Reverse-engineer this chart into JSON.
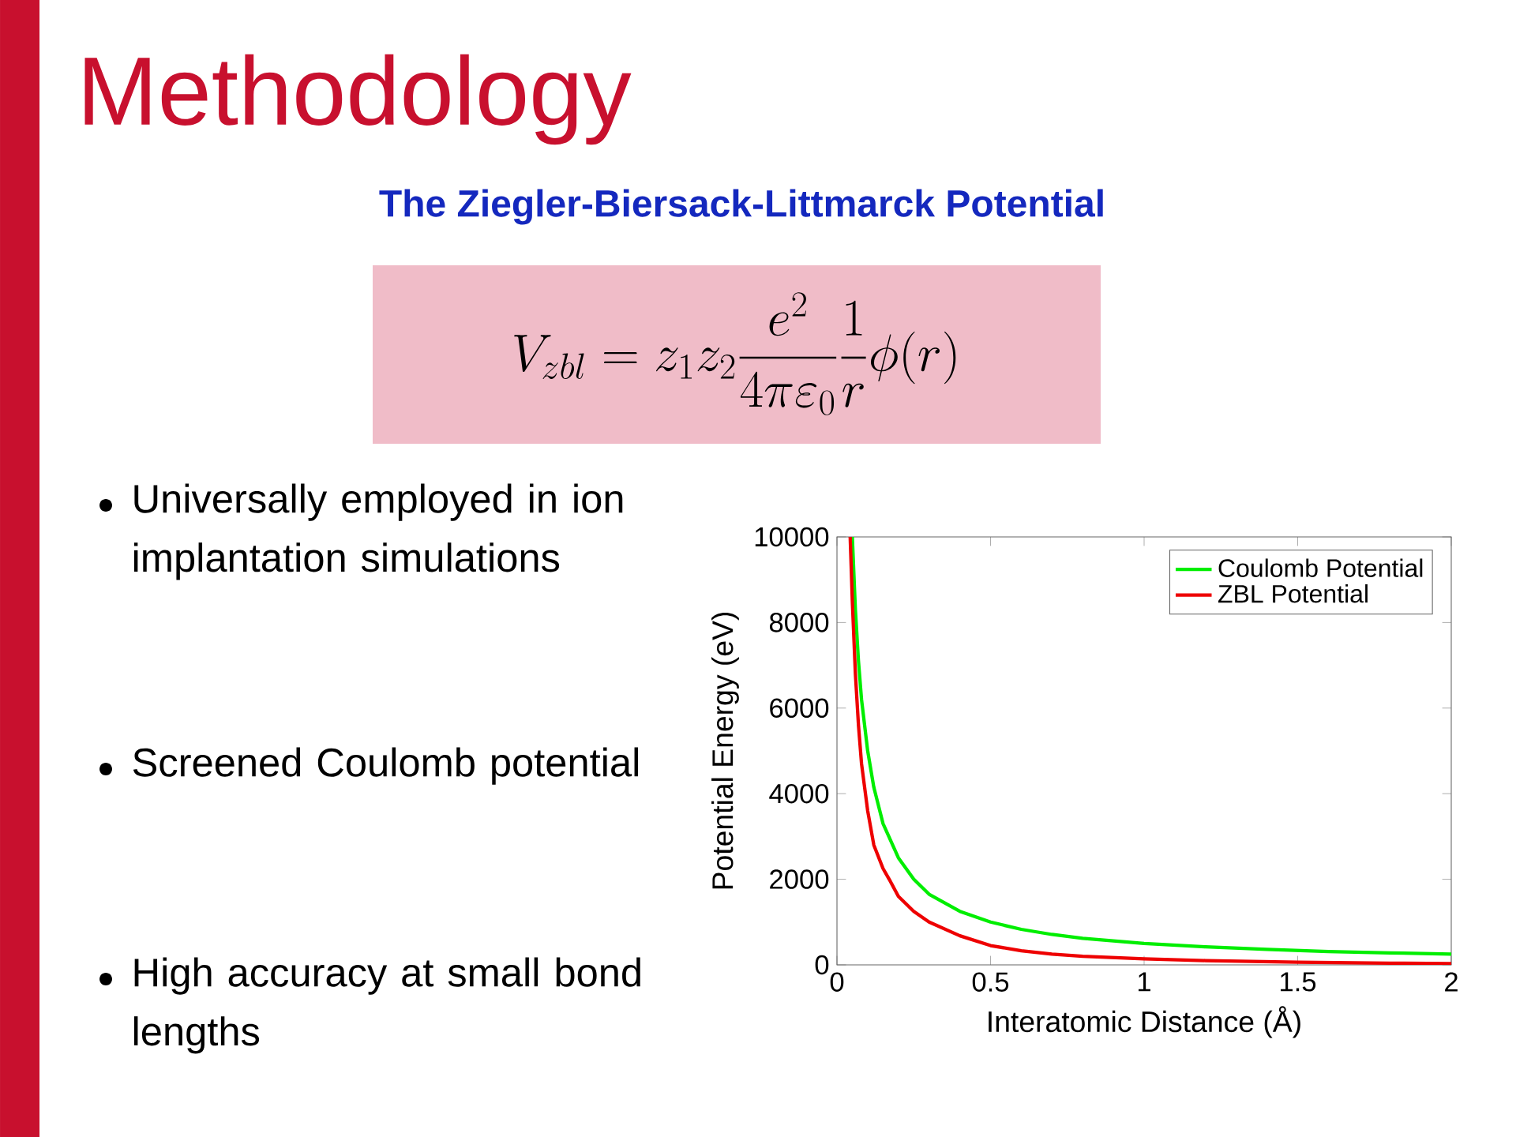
{
  "chart_data": {
    "type": "line",
    "title": "Methodology",
    "subtitle": "The Ziegler-Biersack-Littmarck Potential",
    "xlabel": "Interatomic Distance (Å)",
    "ylabel": "Potential Energy (eV)",
    "annotations": [
      "V_{zbl} = z_1 z_2 \\frac{e^2}{4\\pi\\varepsilon_0}\\frac{1}{r}\\phi(r)",
      "Universally employed in ion implantation simulations",
      "Screened Coulomb potential",
      "High accuracy at small bond lengths"
    ],
    "xlim": [
      0,
      2
    ],
    "ylim": [
      0,
      10000
    ],
    "xticks": [
      0,
      0.5,
      1,
      1.5,
      2
    ],
    "yticks": [
      0,
      2000,
      4000,
      6000,
      8000,
      10000
    ],
    "legend": "top right",
    "grid": false,
    "series": [
      {
        "name": "Coulomb Potential",
        "color": "#00ee00",
        "x": [
          0.05,
          0.06,
          0.07,
          0.08,
          0.1,
          0.12,
          0.15,
          0.2,
          0.25,
          0.3,
          0.4,
          0.5,
          0.6,
          0.7,
          0.8,
          1.0,
          1.2,
          1.4,
          1.6,
          1.8,
          2.0
        ],
        "values": [
          10000,
          8300,
          7100,
          6200,
          5000,
          4150,
          3300,
          2500,
          2000,
          1650,
          1250,
          1000,
          830,
          710,
          620,
          500,
          420,
          360,
          310,
          280,
          250
        ]
      },
      {
        "name": "ZBL Potential",
        "color": "#ee0000",
        "x": [
          0.043,
          0.05,
          0.06,
          0.07,
          0.08,
          0.1,
          0.12,
          0.15,
          0.17,
          0.2,
          0.25,
          0.3,
          0.4,
          0.5,
          0.6,
          0.7,
          0.8,
          1.0,
          1.2,
          1.5,
          1.8,
          2.0
        ],
        "values": [
          10000,
          8500,
          6800,
          5600,
          4700,
          3600,
          2800,
          2250,
          2000,
          1600,
          1250,
          1000,
          680,
          450,
          330,
          250,
          200,
          140,
          100,
          60,
          40,
          30
        ]
      }
    ]
  }
}
